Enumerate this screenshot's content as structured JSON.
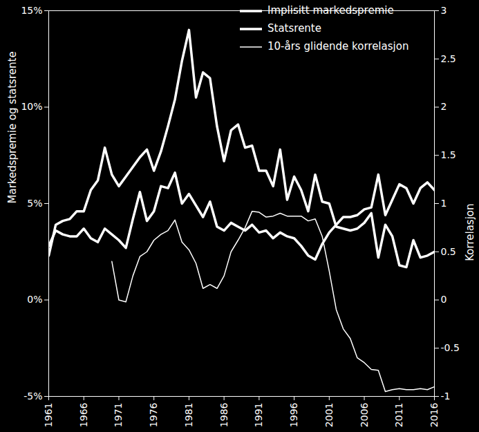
{
  "chart_data": {
    "type": "line",
    "x": [
      1961,
      1962,
      1963,
      1964,
      1965,
      1966,
      1967,
      1968,
      1969,
      1970,
      1971,
      1972,
      1973,
      1974,
      1975,
      1976,
      1977,
      1978,
      1979,
      1980,
      1981,
      1982,
      1983,
      1984,
      1985,
      1986,
      1987,
      1988,
      1989,
      1990,
      1991,
      1992,
      1993,
      1994,
      1995,
      1996,
      1997,
      1998,
      1999,
      2000,
      2001,
      2002,
      2003,
      2004,
      2005,
      2006,
      2007,
      2008,
      2009,
      2010,
      2011,
      2012,
      2013,
      2014,
      2015,
      2016
    ],
    "series": [
      {
        "name": "Implisitt markedspremie",
        "color": "#ffffff",
        "values": [
          2.8,
          3.6,
          3.4,
          3.3,
          3.3,
          3.7,
          3.2,
          3.0,
          3.7,
          3.4,
          3.1,
          2.7,
          4.2,
          5.6,
          4.1,
          4.6,
          5.9,
          5.8,
          6.6,
          5.0,
          5.5,
          4.9,
          4.3,
          5.1,
          3.8,
          3.6,
          4.0,
          3.8,
          3.6,
          3.9,
          3.5,
          3.6,
          3.2,
          3.5,
          3.3,
          3.2,
          2.8,
          2.3,
          2.1,
          2.9,
          3.5,
          3.9,
          4.3,
          4.3,
          4.4,
          4.7,
          4.8,
          6.5,
          4.4,
          5.2,
          6.0,
          5.8,
          5.0,
          5.8,
          6.1,
          5.7
        ]
      },
      {
        "name": "Statsrente",
        "color": "#ffffff",
        "values": [
          2.3,
          3.9,
          4.1,
          4.2,
          4.6,
          4.6,
          5.7,
          6.2,
          7.9,
          6.5,
          5.9,
          6.4,
          6.9,
          7.4,
          7.8,
          6.7,
          7.7,
          9.0,
          10.4,
          12.4,
          14.0,
          10.5,
          11.8,
          11.5,
          9.0,
          7.2,
          8.8,
          9.1,
          7.9,
          8.0,
          6.7,
          6.7,
          5.9,
          7.8,
          5.2,
          6.4,
          5.7,
          4.6,
          6.5,
          5.1,
          5.0,
          3.8,
          3.7,
          3.6,
          3.7,
          4.0,
          4.5,
          2.2,
          3.9,
          3.3,
          1.8,
          1.7,
          3.1,
          2.2,
          2.3,
          2.5
        ]
      },
      {
        "name": "10-års glidende korrelasjon",
        "color": "#ffffff",
        "axis": "y2",
        "values": [
          null,
          null,
          null,
          null,
          null,
          null,
          null,
          null,
          null,
          0.4,
          0.0,
          -0.02,
          0.25,
          0.45,
          0.5,
          0.62,
          0.68,
          0.72,
          0.83,
          0.6,
          0.52,
          0.38,
          0.12,
          0.16,
          0.12,
          0.25,
          0.5,
          0.62,
          0.75,
          0.92,
          0.91,
          0.86,
          0.87,
          0.9,
          0.87,
          0.87,
          0.87,
          0.82,
          0.84,
          0.66,
          0.3,
          -0.1,
          -0.3,
          -0.4,
          -0.6,
          -0.65,
          -0.72,
          -0.73,
          -0.95,
          -0.93,
          -0.92,
          -0.93,
          -0.93,
          -0.92,
          -0.93,
          -0.9
        ]
      }
    ],
    "y_label": "Markedspremie og statsrente",
    "y2_label": "Korrelasjon",
    "xlim": [
      1961,
      2016
    ],
    "xticks": [
      1961,
      1966,
      1971,
      1976,
      1981,
      1986,
      1991,
      1996,
      2001,
      2006,
      2011,
      2016
    ],
    "ylim": [
      -5,
      15
    ],
    "yticks": [
      {
        "value": -5,
        "label": "-5%"
      },
      {
        "value": 0,
        "label": "0%"
      },
      {
        "value": 5,
        "label": "5%"
      },
      {
        "value": 10,
        "label": "10%"
      },
      {
        "value": 15,
        "label": "15%"
      }
    ],
    "y2lim": [
      -1,
      3
    ],
    "y2ticks": [
      -1,
      -0.5,
      0,
      0.5,
      1,
      1.5,
      2,
      2.5,
      3
    ],
    "grid": false,
    "legend": "top-right"
  }
}
